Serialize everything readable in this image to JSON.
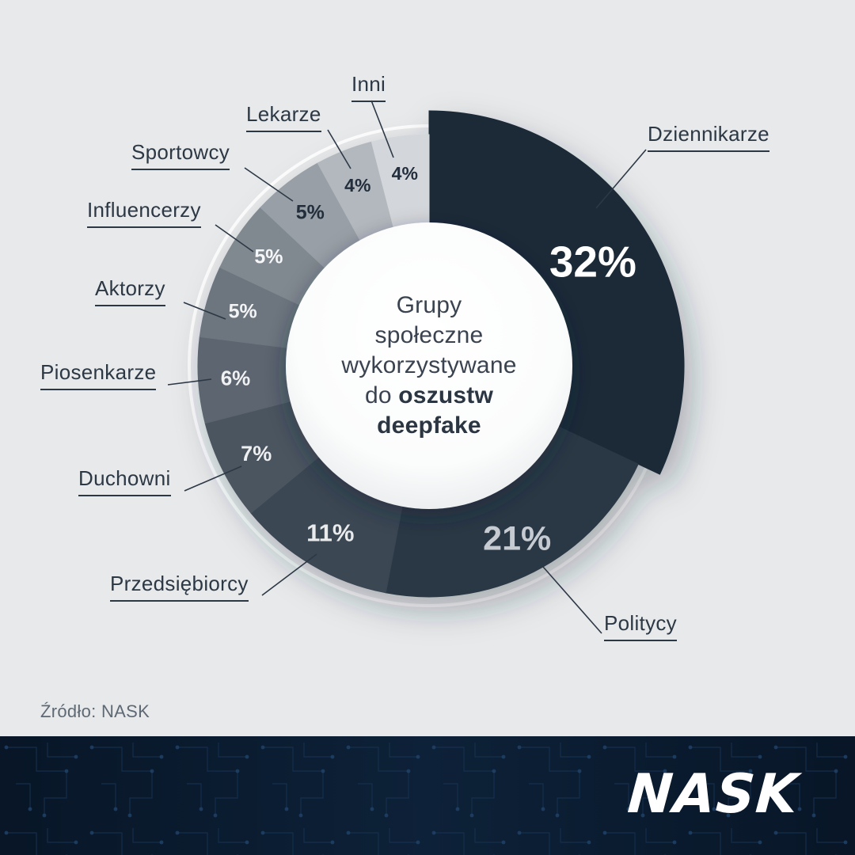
{
  "page": {
    "background_color": "#e7e9eb",
    "source": "Źródło: NASK",
    "brand": "NASK",
    "footer_color": "#0a1a2d",
    "accent_dark": "#1e2a39"
  },
  "center": {
    "l1": "Grupy",
    "l2": "społeczne",
    "l3": "wykorzystywane",
    "l4a": "do",
    "l4b": "oszustw",
    "l5": "deepfake"
  },
  "chart_data": {
    "type": "pie",
    "variant": "donut",
    "title": "Grupy społeczne wykorzystywane do oszustw deepfake",
    "unit": "%",
    "start_angle_deg": 0,
    "direction": "clockwise",
    "total": 100,
    "segments": [
      {
        "key": "dziennikarze",
        "label": "Dziennikarze",
        "value": 32,
        "percent_label": "32%",
        "color": "#1e2a39",
        "value_color": "#ffffff"
      },
      {
        "key": "politycy",
        "label": "Politycy",
        "value": 21,
        "percent_label": "21%",
        "color": "#2b3845",
        "value_color": "#c6cbd2"
      },
      {
        "key": "przedsiebiorcy",
        "label": "Przedsiębiorcy",
        "value": 11,
        "percent_label": "11%",
        "color": "#3a4653",
        "value_color": "#e8eaec"
      },
      {
        "key": "duchowni",
        "label": "Duchowni",
        "value": 7,
        "percent_label": "7%",
        "color": "#4b5561",
        "value_color": "#edeff1"
      },
      {
        "key": "piosenkarze",
        "label": "Piosenkarze",
        "value": 6,
        "percent_label": "6%",
        "color": "#5c656f",
        "value_color": "#f0f1f3"
      },
      {
        "key": "aktorzy",
        "label": "Aktorzy",
        "value": 5,
        "percent_label": "5%",
        "color": "#6d767f",
        "value_color": "#f3f4f5"
      },
      {
        "key": "influencerzy",
        "label": "Influencerzy",
        "value": 5,
        "percent_label": "5%",
        "color": "#818990",
        "value_color": "#f6f7f8"
      },
      {
        "key": "sportowcy",
        "label": "Sportowcy",
        "value": 5,
        "percent_label": "5%",
        "color": "#989fa6",
        "value_color": "#222e3c"
      },
      {
        "key": "lekarze",
        "label": "Lekarze",
        "value": 4,
        "percent_label": "4%",
        "color": "#b3b8be",
        "value_color": "#222e3c"
      },
      {
        "key": "inni",
        "label": "Inni",
        "value": 4,
        "percent_label": "4%",
        "color": "#d3d6da",
        "value_color": "#222e3c"
      }
    ]
  }
}
